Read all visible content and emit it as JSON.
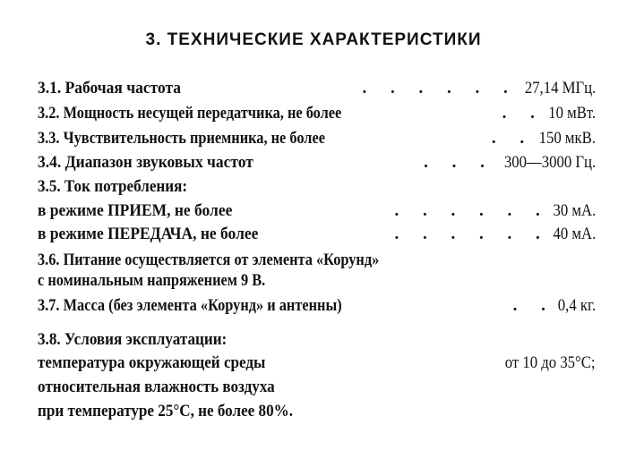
{
  "title": "3. ТЕХНИЧЕСКИЕ ХАРАКТЕРИСТИКИ",
  "lines": [
    {
      "text": "3.1. Рабочая частота",
      "leader": ". . . . . .",
      "value": "27,14 МГц."
    },
    {
      "text": "3.2. Мощность несущей передатчика, не более",
      "leader": ". .",
      "value": "10 мВт."
    },
    {
      "text": "3.3. Чувствительность приемника, не более",
      "leader": ". .",
      "value": "150 мкВ."
    },
    {
      "text": "3.4. Диапазон звуковых частот",
      "leader": ". . .",
      "value": "300—3000 Гц."
    },
    {
      "text": "3.5. Ток потребления:",
      "leader": "",
      "value": ""
    },
    {
      "text": "в режиме ПРИЕМ, не более",
      "leader": ". . . . . .",
      "value": "30 мА."
    },
    {
      "text": "в режиме ПЕРЕДАЧА, не более",
      "leader": ". . . . . .",
      "value": "40 мА."
    },
    {
      "text": "3.6. Питание осуществляется от элемента «Корунд»",
      "leader": "",
      "value": ""
    },
    {
      "text": "с номинальным напряжением 9 В.",
      "leader": "",
      "value": ""
    },
    {
      "text": "3.7. Масса (без элемента «Корунд» и антенны)",
      "leader": ". .",
      "value": "0,4 кг."
    },
    {
      "text": "3.8. Условия эксплуатации:",
      "leader": "",
      "value": ""
    },
    {
      "text": "температура окружающей среды",
      "leader": "",
      "value": "от 10 до 35°С;"
    },
    {
      "text": "относительная влажность воздуха",
      "leader": "",
      "value": ""
    },
    {
      "text": "при температуре 25°С, не более 80%.",
      "leader": "",
      "value": ""
    }
  ]
}
